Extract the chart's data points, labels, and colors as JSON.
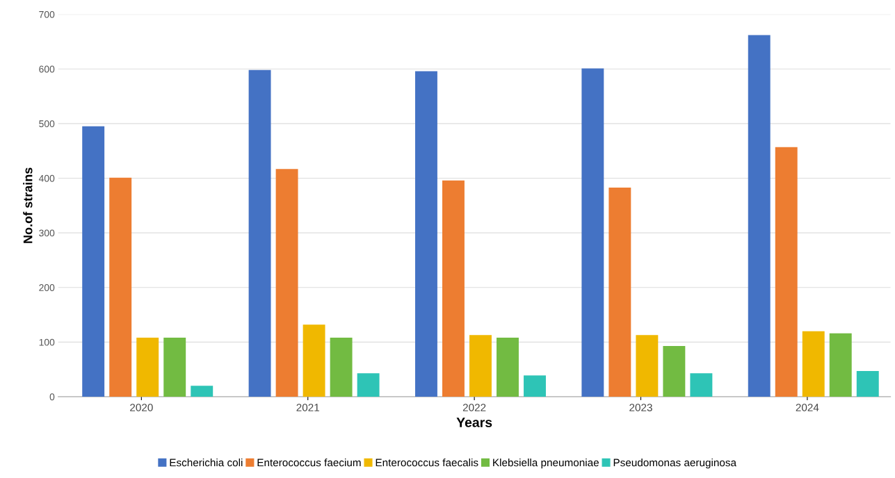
{
  "chart_data": {
    "type": "bar",
    "xlabel": "Years",
    "ylabel": "No.of strains",
    "categories": [
      "2020",
      "2021",
      "2022",
      "2023",
      "2024"
    ],
    "series": [
      {
        "name": "Escherichia coli",
        "color": "#4472c4",
        "values": [
          495,
          598,
          596,
          601,
          662
        ]
      },
      {
        "name": "Enterococcus faecium",
        "color": "#ed7d31",
        "values": [
          401,
          417,
          396,
          383,
          457
        ]
      },
      {
        "name": "Enterococcus faecalis",
        "color": "#f0b800",
        "values": [
          108,
          132,
          113,
          113,
          120
        ]
      },
      {
        "name": "Klebsiella pneumoniae",
        "color": "#72bb42",
        "values": [
          108,
          108,
          108,
          93,
          116
        ]
      },
      {
        "name": "Pseudomonas aeruginosa",
        "color": "#2ec4b6",
        "values": [
          20,
          43,
          39,
          43,
          47
        ]
      }
    ],
    "ylim": [
      0,
      700
    ],
    "yticks": [
      0,
      100,
      200,
      300,
      400,
      500,
      600,
      700
    ],
    "grid": "y",
    "legend": "bottom"
  }
}
